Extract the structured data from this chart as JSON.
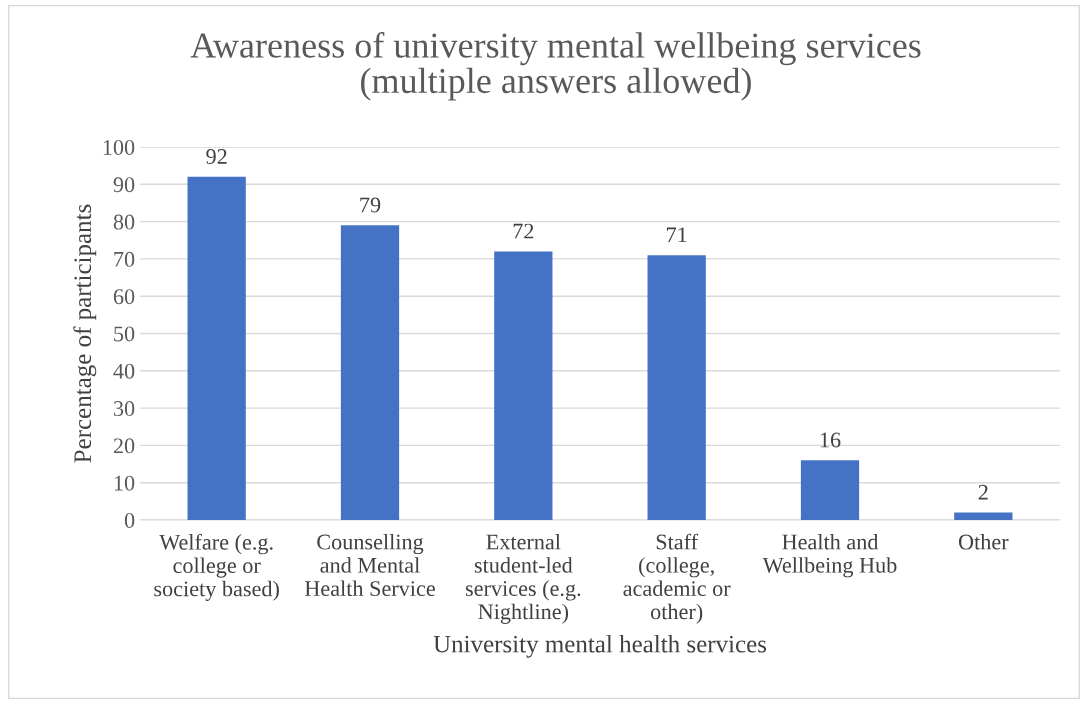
{
  "chart_data": {
    "type": "bar",
    "title": "Awareness of university mental wellbeing services\n(multiple answers allowed)",
    "xlabel": "University mental health services",
    "ylabel": "Percentage of participants",
    "categories": [
      "Welfare (e.g. college or society based)",
      "Counselling and Mental Health Service",
      "External student-led services (e.g. Nightline)",
      "Staff (college, academic or other)",
      "Health and Wellbeing Hub",
      "Other"
    ],
    "values": [
      92,
      79,
      72,
      71,
      16,
      2
    ],
    "color": "#4472c4",
    "ylim": [
      0,
      100
    ],
    "yticks": [
      0,
      10,
      20,
      30,
      40,
      50,
      60,
      70,
      80,
      90,
      100
    ],
    "grid": "y",
    "data_labels": true,
    "legend": false
  }
}
